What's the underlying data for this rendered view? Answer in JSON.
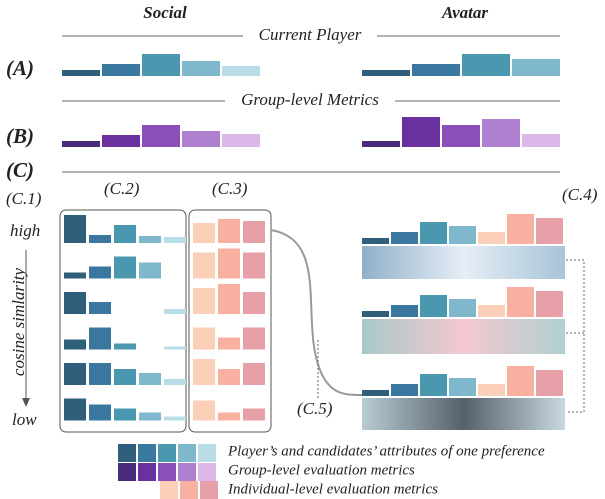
{
  "header": {
    "social": "Social",
    "avatar": "Avatar"
  },
  "sections": {
    "a": {
      "label": "(A)",
      "title": "Current Player"
    },
    "b": {
      "label": "(B)",
      "title": "Group-level Metrics"
    },
    "c": {
      "label": "(C)",
      "parts": [
        "(C.1)",
        "(C.2)",
        "(C.3)",
        "(C.4)",
        "(C.5)"
      ]
    }
  },
  "axis": {
    "high": "high",
    "low": "low",
    "title": "cosine simlarity"
  },
  "legend": [
    "Player’s and candidates’ attributes of one preference",
    "Group-level evaluation metrics",
    "Individual-level evaluation metrics"
  ]
}
